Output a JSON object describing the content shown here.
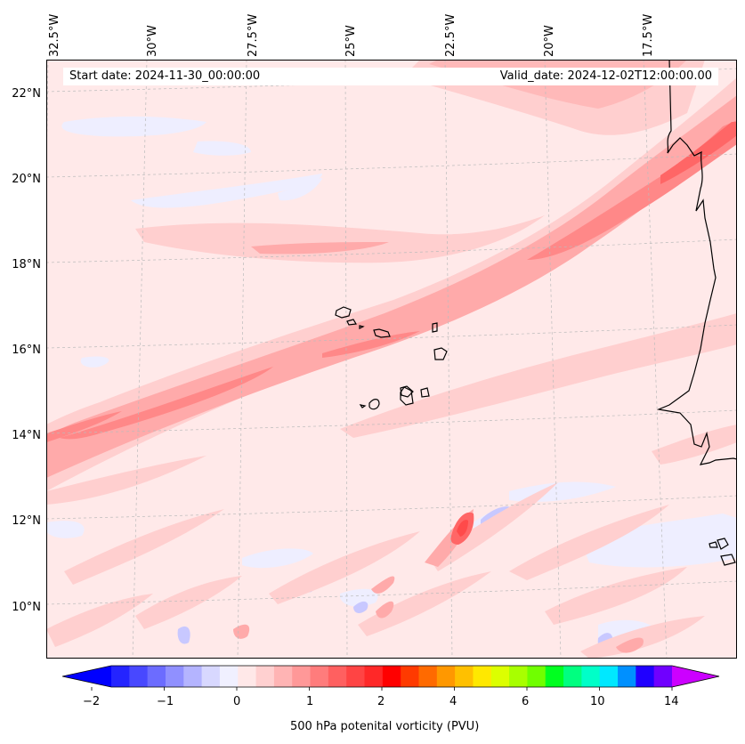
{
  "map": {
    "start_date": "Start date: 2024-11-30_00:00:00",
    "valid_date": "Valid_date: 2024-12-02T12:00:00.00",
    "lon_labels": [
      "32.5°W",
      "30°W",
      "27.5°W",
      "25°W",
      "22.5°W",
      "20°W",
      "17.5°W"
    ],
    "lat_labels": [
      "22°N",
      "20°N",
      "18°N",
      "16°N",
      "14°N",
      "12°N",
      "10°N"
    ]
  },
  "colorbar": {
    "title": "500 hPa potenital vorticity (PVU)",
    "ticks": [
      "−2",
      "−1",
      "0",
      "1",
      "2",
      "4",
      "6",
      "10",
      "14"
    ],
    "colors": [
      "#0000ff",
      "#2424ff",
      "#4848ff",
      "#6c6cff",
      "#9090ff",
      "#b4b4ff",
      "#d8d8ff",
      "#f0f0ff",
      "#ffe8e8",
      "#ffd0d0",
      "#ffb4b4",
      "#ff9898",
      "#ff7c7c",
      "#ff6060",
      "#ff4444",
      "#ff2828",
      "#ff0000",
      "#ff3a00",
      "#ff6a00",
      "#ff9800",
      "#ffc000",
      "#ffe800",
      "#dcff00",
      "#a8ff00",
      "#70ff00",
      "#00ff20",
      "#00ff80",
      "#00ffc8",
      "#00e8ff",
      "#0090ff",
      "#2000ff",
      "#7000ff",
      "#b000ff"
    ]
  },
  "palette": {
    "background": "#ffe9e9",
    "light": "#ffcfcf",
    "mid": "#ffaaaa",
    "strong": "#ff8888",
    "core": "#ff6666",
    "blue_light": "#eeeeff",
    "blue_mid": "#c8c8ff"
  }
}
